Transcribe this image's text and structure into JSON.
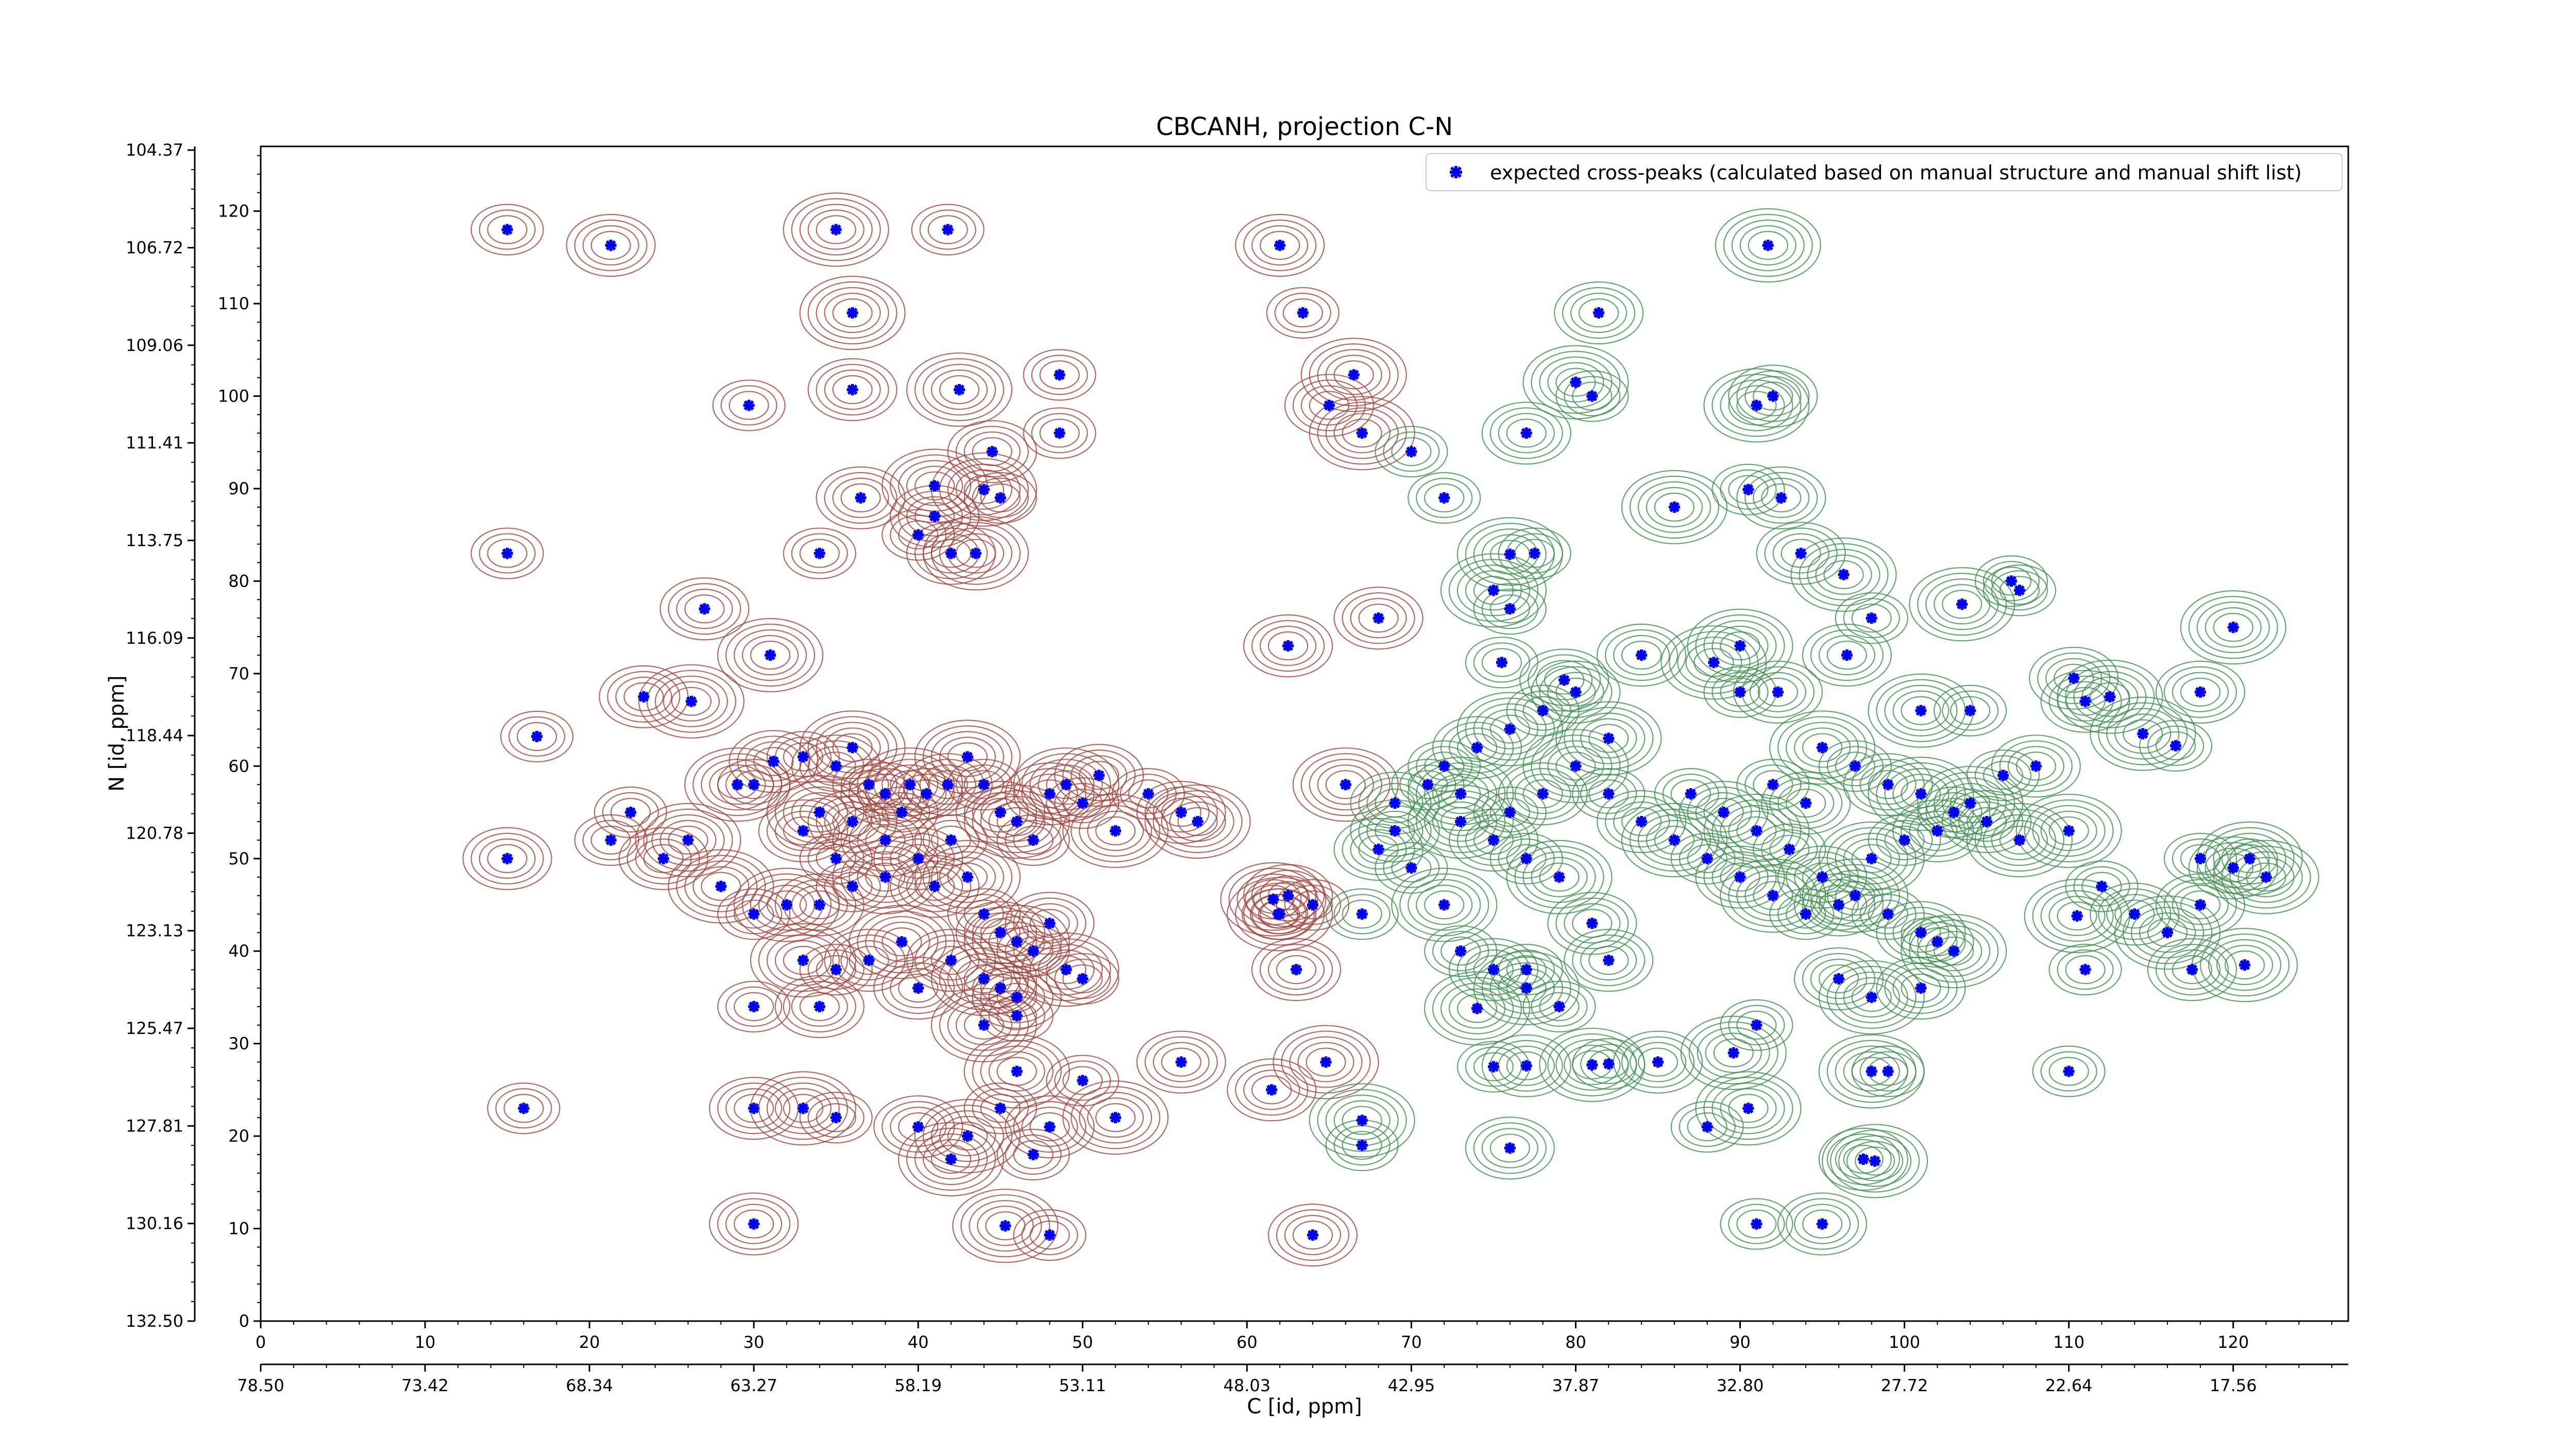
{
  "chart_data": {
    "type": "scatter",
    "title": "CBCANH, projection C-N",
    "xlabel": "C [id, ppm]",
    "ylabel": "N [id, ppm]",
    "xlim": [
      0,
      127
    ],
    "ylim": [
      0,
      127
    ],
    "x_ticks": [
      0,
      10,
      20,
      30,
      40,
      50,
      60,
      70,
      80,
      90,
      100,
      110,
      120
    ],
    "y_ticks": [
      0,
      10,
      20,
      30,
      40,
      50,
      60,
      70,
      80,
      90,
      100,
      110,
      120
    ],
    "x_ppm_ticks": [
      {
        "pos": 0,
        "label": "78.50"
      },
      {
        "pos": 10,
        "label": "73.42"
      },
      {
        "pos": 20,
        "label": "68.34"
      },
      {
        "pos": 30,
        "label": "63.27"
      },
      {
        "pos": 40,
        "label": "58.19"
      },
      {
        "pos": 50,
        "label": "53.11"
      },
      {
        "pos": 60,
        "label": "48.03"
      },
      {
        "pos": 70,
        "label": "42.95"
      },
      {
        "pos": 80,
        "label": "37.87"
      },
      {
        "pos": 90,
        "label": "32.80"
      },
      {
        "pos": 100,
        "label": "27.72"
      },
      {
        "pos": 110,
        "label": "22.64"
      },
      {
        "pos": 120,
        "label": "17.56"
      }
    ],
    "y_ppm_ticks": [
      {
        "pos": 0,
        "label": "132.50"
      },
      {
        "pos": 10.55,
        "label": "130.16"
      },
      {
        "pos": 21.1,
        "label": "127.81"
      },
      {
        "pos": 31.65,
        "label": "125.47"
      },
      {
        "pos": 42.2,
        "label": "123.13"
      },
      {
        "pos": 52.75,
        "label": "120.78"
      },
      {
        "pos": 63.3,
        "label": "118.44"
      },
      {
        "pos": 73.85,
        "label": "116.09"
      },
      {
        "pos": 84.4,
        "label": "113.75"
      },
      {
        "pos": 94.95,
        "label": "111.41"
      },
      {
        "pos": 105.5,
        "label": "109.06"
      },
      {
        "pos": 116.05,
        "label": "106.72"
      },
      {
        "pos": 126.6,
        "label": "104.37"
      }
    ],
    "legend": {
      "position": "top-right",
      "label": "expected cross-peaks (calculated based on manual structure and manual shift list)"
    },
    "colors": {
      "positive_contour": "#a0453c",
      "negative_contour": "#3f8f4f",
      "marker": "#0000ee"
    },
    "series": [
      {
        "name": "expected cross-peaks (calculated based on manual structure and manual shift list)",
        "points": [
          [
            15,
            118
          ],
          [
            21.3,
            116.3
          ],
          [
            35,
            118
          ],
          [
            41.8,
            118
          ],
          [
            62,
            116.3
          ],
          [
            36,
            109
          ],
          [
            63.4,
            109
          ],
          [
            81.4,
            109
          ],
          [
            91.7,
            116.3
          ],
          [
            29.7,
            99
          ],
          [
            36,
            100.7
          ],
          [
            42.5,
            100.7
          ],
          [
            48.6,
            102.3
          ],
          [
            65,
            99
          ],
          [
            66.5,
            102.3
          ],
          [
            48.6,
            96
          ],
          [
            44.5,
            94
          ],
          [
            67,
            96
          ],
          [
            70,
            94
          ],
          [
            77,
            96
          ],
          [
            80,
            101.5
          ],
          [
            81,
            100
          ],
          [
            92,
            100
          ],
          [
            91,
            99
          ],
          [
            90.5,
            89.9
          ],
          [
            92.5,
            89
          ],
          [
            86,
            88
          ],
          [
            72,
            89
          ],
          [
            36.5,
            89
          ],
          [
            41,
            90.3
          ],
          [
            45,
            89
          ],
          [
            41,
            87
          ],
          [
            44,
            89.9
          ],
          [
            15,
            83
          ],
          [
            42,
            83
          ],
          [
            43.5,
            83
          ],
          [
            34,
            83
          ],
          [
            27,
            77
          ],
          [
            31,
            72
          ],
          [
            40,
            85
          ],
          [
            93.7,
            83
          ],
          [
            96.3,
            80.7
          ],
          [
            106.5,
            80
          ],
          [
            62.5,
            73
          ],
          [
            76,
            82.9
          ],
          [
            77.5,
            83
          ],
          [
            68,
            76
          ],
          [
            75,
            79
          ],
          [
            76,
            77
          ],
          [
            84,
            72
          ],
          [
            90,
            73
          ],
          [
            98,
            76
          ],
          [
            96.5,
            72
          ],
          [
            103.5,
            77.5
          ],
          [
            107,
            79
          ],
          [
            110.3,
            69.5
          ],
          [
            120,
            75
          ],
          [
            75.5,
            71.2
          ],
          [
            79.3,
            69.3
          ],
          [
            88.4,
            71.2
          ],
          [
            90,
            68
          ],
          [
            92.3,
            68
          ],
          [
            101,
            66
          ],
          [
            104,
            66
          ],
          [
            111,
            67
          ],
          [
            114.5,
            63.5
          ],
          [
            116.5,
            62.2
          ],
          [
            118,
            68
          ],
          [
            112.5,
            67.5
          ],
          [
            16.8,
            63.2
          ],
          [
            23.3,
            67.5
          ],
          [
            26.2,
            67
          ],
          [
            22.5,
            55
          ],
          [
            24.5,
            50
          ],
          [
            26,
            52
          ],
          [
            21.3,
            52
          ],
          [
            15,
            50
          ],
          [
            28,
            47
          ],
          [
            30,
            58
          ],
          [
            31.2,
            60.5
          ],
          [
            29,
            58
          ],
          [
            33,
            61
          ],
          [
            35,
            60
          ],
          [
            36,
            62
          ],
          [
            37,
            58
          ],
          [
            38,
            57
          ],
          [
            39.5,
            58
          ],
          [
            40.5,
            57
          ],
          [
            41.8,
            58
          ],
          [
            43,
            61
          ],
          [
            44,
            58
          ],
          [
            45,
            55
          ],
          [
            46,
            54
          ],
          [
            47,
            52
          ],
          [
            48,
            57
          ],
          [
            49,
            58
          ],
          [
            50,
            56
          ],
          [
            51,
            59
          ],
          [
            52,
            53
          ],
          [
            54,
            57
          ],
          [
            56,
            55
          ],
          [
            57,
            54
          ],
          [
            42,
            52
          ],
          [
            40,
            50
          ],
          [
            38,
            48
          ],
          [
            36,
            47
          ],
          [
            34,
            45
          ],
          [
            32,
            45
          ],
          [
            30,
            44
          ],
          [
            33,
            53
          ],
          [
            34,
            55
          ],
          [
            35,
            50
          ],
          [
            36,
            54
          ],
          [
            38,
            52
          ],
          [
            39,
            55
          ],
          [
            41,
            47
          ],
          [
            43,
            48
          ],
          [
            44,
            44
          ],
          [
            45,
            42
          ],
          [
            46,
            41
          ],
          [
            47,
            40
          ],
          [
            48,
            43
          ],
          [
            49,
            38
          ],
          [
            50,
            37
          ],
          [
            42,
            39
          ],
          [
            44,
            37
          ],
          [
            45,
            36
          ],
          [
            46,
            35
          ],
          [
            33,
            39
          ],
          [
            35,
            38
          ],
          [
            40,
            36
          ],
          [
            44,
            32
          ],
          [
            46,
            33
          ],
          [
            37,
            39
          ],
          [
            39,
            41
          ],
          [
            30,
            34
          ],
          [
            34,
            34
          ],
          [
            46,
            27
          ],
          [
            50,
            26
          ],
          [
            56,
            28
          ],
          [
            43,
            20
          ],
          [
            45,
            23
          ],
          [
            48,
            21
          ],
          [
            52,
            22
          ],
          [
            35,
            22
          ],
          [
            40,
            21
          ],
          [
            42,
            17.5
          ],
          [
            47,
            18
          ],
          [
            30,
            23
          ],
          [
            33,
            23
          ],
          [
            16,
            23
          ],
          [
            30,
            10.5
          ],
          [
            45.3,
            10.3
          ],
          [
            48,
            9.3
          ],
          [
            61.5,
            25
          ],
          [
            64.8,
            28
          ],
          [
            75,
            27.5
          ],
          [
            76,
            18.7
          ],
          [
            67,
            21.7
          ],
          [
            67,
            19
          ],
          [
            64,
            9.3
          ],
          [
            90.5,
            23
          ],
          [
            88,
            21
          ],
          [
            85,
            28
          ],
          [
            89.6,
            29
          ],
          [
            91,
            32
          ],
          [
            96,
            37
          ],
          [
            98,
            35
          ],
          [
            102,
            41
          ],
          [
            101,
            36
          ],
          [
            98,
            27
          ],
          [
            99,
            27
          ],
          [
            97.5,
            17.5
          ],
          [
            98.2,
            17.3
          ],
          [
            91,
            10.5
          ],
          [
            95,
            10.5
          ],
          [
            81,
            27.7
          ],
          [
            82,
            27.8
          ],
          [
            77,
            27.6
          ],
          [
            74,
            33.8
          ],
          [
            77,
            38
          ],
          [
            82,
            39
          ],
          [
            72,
            45
          ],
          [
            70,
            49
          ],
          [
            68,
            51
          ],
          [
            66,
            58
          ],
          [
            64,
            45
          ],
          [
            63,
            38
          ],
          [
            62,
            44
          ],
          [
            67,
            44
          ],
          [
            69,
            53
          ],
          [
            73,
            54
          ],
          [
            76,
            55
          ],
          [
            78,
            57
          ],
          [
            80,
            60
          ],
          [
            82,
            57
          ],
          [
            84,
            54
          ],
          [
            86,
            52
          ],
          [
            88,
            50
          ],
          [
            90,
            48
          ],
          [
            92,
            46
          ],
          [
            94,
            44
          ],
          [
            96,
            45
          ],
          [
            98,
            50
          ],
          [
            100,
            52
          ],
          [
            102,
            53
          ],
          [
            104,
            56
          ],
          [
            106,
            59
          ],
          [
            108,
            60
          ],
          [
            110,
            53
          ],
          [
            112,
            47
          ],
          [
            114,
            44
          ],
          [
            116,
            42
          ],
          [
            118,
            50
          ],
          [
            120,
            49
          ],
          [
            122,
            48
          ],
          [
            87,
            57
          ],
          [
            89,
            55
          ],
          [
            91,
            53
          ],
          [
            93,
            51
          ],
          [
            95,
            48
          ],
          [
            97,
            46
          ],
          [
            99,
            44
          ],
          [
            101,
            42
          ],
          [
            103,
            40
          ],
          [
            72,
            60
          ],
          [
            74,
            62
          ],
          [
            76,
            64
          ],
          [
            78,
            66
          ],
          [
            80,
            68
          ],
          [
            82,
            63
          ],
          [
            73,
            40
          ],
          [
            75,
            38
          ],
          [
            77,
            36
          ],
          [
            79,
            34
          ],
          [
            81,
            43
          ],
          [
            79,
            48
          ],
          [
            77,
            50
          ],
          [
            75,
            52
          ],
          [
            73,
            57
          ],
          [
            71,
            58
          ],
          [
            69,
            56
          ],
          [
            95,
            62
          ],
          [
            97,
            60
          ],
          [
            99,
            58
          ],
          [
            101,
            57
          ],
          [
            103,
            55
          ],
          [
            105,
            54
          ],
          [
            107,
            52
          ],
          [
            92,
            58
          ],
          [
            94,
            56
          ],
          [
            110.5,
            43.8
          ],
          [
            111,
            38
          ],
          [
            117.5,
            38
          ],
          [
            120.7,
            38.5
          ],
          [
            110,
            27
          ],
          [
            118,
            45
          ],
          [
            121,
            50
          ],
          [
            61.9,
            44
          ],
          [
            62.5,
            46
          ],
          [
            61.6,
            45.6
          ]
        ]
      }
    ]
  }
}
